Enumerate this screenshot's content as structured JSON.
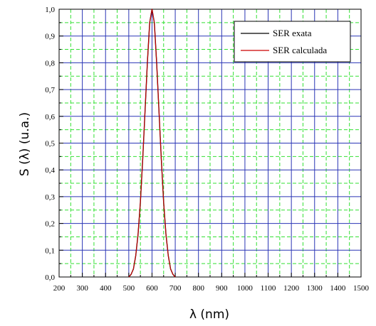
{
  "chart_data": {
    "type": "line",
    "title": "",
    "xlabel": "λ (nm)",
    "ylabel": "S (λ) (u.a.)",
    "xlim": [
      200,
      1500
    ],
    "ylim": [
      0,
      1
    ],
    "x_ticks": [
      "200",
      "300",
      "400",
      "500",
      "600",
      "700",
      "800",
      "900",
      "1000",
      "1100",
      "1200",
      "1300",
      "1400",
      "1500"
    ],
    "y_ticks": [
      "0,0",
      "0,1",
      "0,2",
      "0,3",
      "0,4",
      "0,5",
      "0,6",
      "0,7",
      "0,8",
      "0,9",
      "1,0"
    ],
    "grid": {
      "major": true,
      "minor": true,
      "major_color": "#2a35b5",
      "minor_color": "#33e033"
    },
    "legend_position": "top-right",
    "series": [
      {
        "name": "SER exata",
        "color": "#000000",
        "x": [
          500,
          510,
          520,
          530,
          540,
          550,
          560,
          570,
          580,
          590,
          600,
          610,
          620,
          630,
          640,
          650,
          660,
          670,
          680,
          690,
          700
        ],
        "y": [
          0.0,
          0.01,
          0.03,
          0.08,
          0.16,
          0.28,
          0.44,
          0.62,
          0.8,
          0.95,
          1.0,
          0.95,
          0.8,
          0.62,
          0.44,
          0.28,
          0.16,
          0.08,
          0.03,
          0.01,
          0.0
        ]
      },
      {
        "name": "SER calculada",
        "color": "#cc0000",
        "x": [
          500,
          510,
          520,
          530,
          540,
          550,
          560,
          570,
          580,
          590,
          600,
          610,
          620,
          630,
          640,
          650,
          660,
          670,
          680,
          690,
          700
        ],
        "y": [
          0.0,
          0.01,
          0.03,
          0.08,
          0.16,
          0.28,
          0.44,
          0.62,
          0.8,
          0.95,
          1.0,
          0.95,
          0.8,
          0.62,
          0.44,
          0.28,
          0.16,
          0.08,
          0.03,
          0.01,
          0.0
        ]
      }
    ]
  }
}
